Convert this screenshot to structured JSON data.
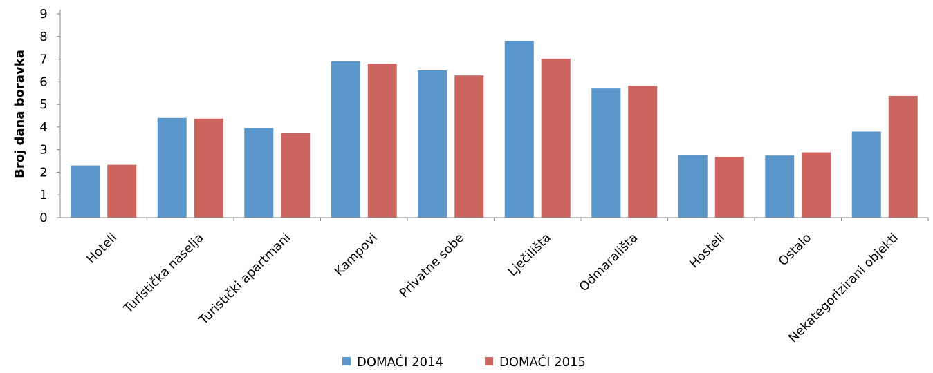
{
  "chart_data": {
    "type": "bar",
    "title": "",
    "xlabel": "",
    "ylabel": "Broj dana boravka",
    "ylim": [
      0,
      9
    ],
    "yticks": [
      0,
      1,
      2,
      3,
      4,
      5,
      6,
      7,
      8,
      9
    ],
    "grid": false,
    "legend_position": "bottom",
    "categories": [
      "Hoteli",
      "Turistička naselja",
      "Turistički apartmani",
      "Kampovi",
      "Privatne sobe",
      "Lječilišta",
      "Odmarališta",
      "Hosteli",
      "Ostalo",
      "Nekategorizirani objekti"
    ],
    "series": [
      {
        "name": "DOMAĆI 2014",
        "color": "#5B96CA",
        "values": [
          2.3,
          4.4,
          3.95,
          6.9,
          6.5,
          7.8,
          5.7,
          2.77,
          2.74,
          3.8
        ]
      },
      {
        "name": "DOMAĆI 2015",
        "color": "#CC6460",
        "values": [
          2.33,
          4.37,
          3.74,
          6.8,
          6.28,
          7.02,
          5.82,
          2.68,
          2.88,
          5.37
        ]
      }
    ]
  }
}
